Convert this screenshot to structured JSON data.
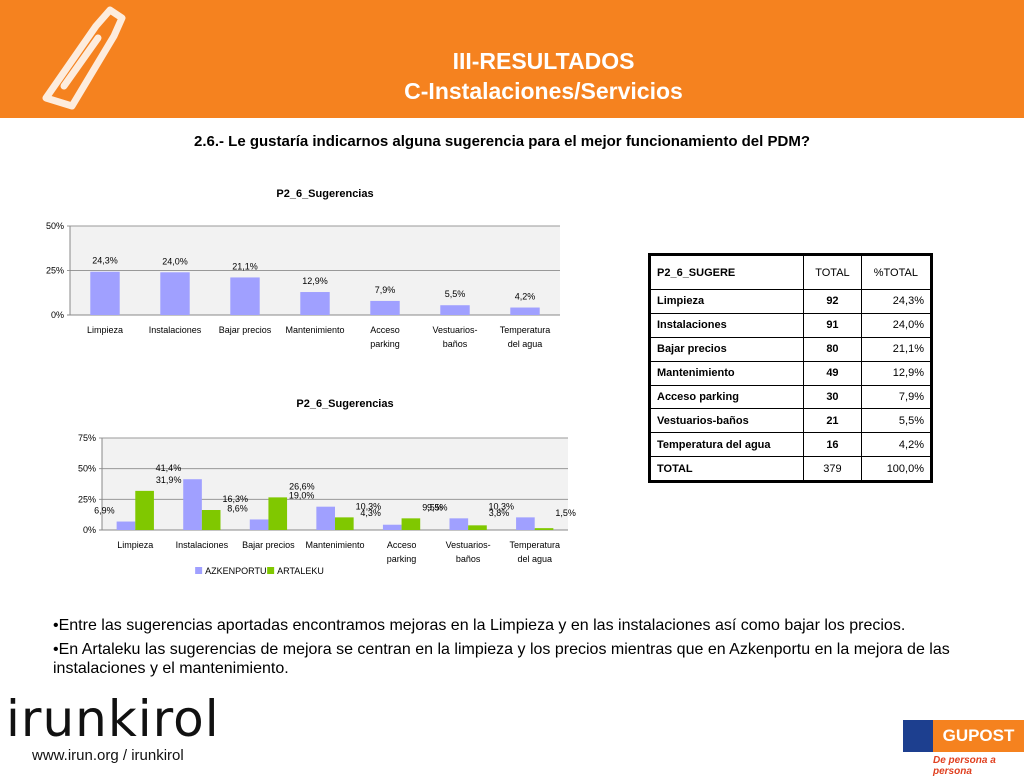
{
  "header": {
    "title_line1": "III-RESULTADOS",
    "title_line2": "C-Instalaciones/Servicios"
  },
  "question": "2.6.- Le gustaría indicarnos alguna sugerencia para el mejor funcionamiento del PDM?",
  "chart_data": [
    {
      "type": "bar",
      "title": "P2_6_Sugerencias",
      "categories": [
        [
          "Limpieza"
        ],
        [
          "Instalaciones"
        ],
        [
          "Bajar precios"
        ],
        [
          "Mantenimiento"
        ],
        [
          "Acceso",
          "parking"
        ],
        [
          "Vestuarios-",
          "baños"
        ],
        [
          "Temperatura",
          "del agua"
        ]
      ],
      "values": [
        24.3,
        24.0,
        21.1,
        12.9,
        7.9,
        5.5,
        4.2
      ],
      "labels": [
        "24,3%",
        "24,0%",
        "21,1%",
        "12,9%",
        "7,9%",
        "5,5%",
        "4,2%"
      ],
      "ylim": [
        0,
        50
      ],
      "yticks": [
        "0%",
        "25%",
        "50%"
      ],
      "colors": [
        "#a0a0ff"
      ]
    },
    {
      "type": "bar",
      "title": "P2_6_Sugerencias",
      "categories": [
        [
          "Limpieza"
        ],
        [
          "Instalaciones"
        ],
        [
          "Bajar precios"
        ],
        [
          "Mantenimiento"
        ],
        [
          "Acceso",
          "parking"
        ],
        [
          "Vestuarios-",
          "baños"
        ],
        [
          "Temperatura",
          "del agua"
        ]
      ],
      "series": [
        {
          "name": "AZKENPORTU",
          "values": [
            6.9,
            41.4,
            8.6,
            19.0,
            4.3,
            9.5,
            10.3
          ],
          "labels": [
            "6,9%",
            "41,4%",
            "8,6%",
            "19,0%",
            "4,3%",
            "9,5%",
            "10,3%"
          ],
          "color": "#a0a0ff"
        },
        {
          "name": "ARTALEKU",
          "values": [
            31.9,
            16.3,
            26.6,
            10.3,
            9.5,
            3.8,
            1.5
          ],
          "labels": [
            "31,9%",
            "16,3%",
            "26,6%",
            "10,3%",
            "9,5%",
            "3,8%",
            "1,5%"
          ],
          "color": "#80c800"
        }
      ],
      "ylim": [
        0,
        75
      ],
      "yticks": [
        "0%",
        "25%",
        "50%",
        "75%"
      ],
      "legend": "bottom"
    }
  ],
  "table": {
    "headers": [
      "P2_6_SUGERE",
      "TOTAL",
      "%TOTAL"
    ],
    "rows": [
      [
        "Limpieza",
        "92",
        "24,3%"
      ],
      [
        "Instalaciones",
        "91",
        "24,0%"
      ],
      [
        "Bajar precios",
        "80",
        "21,1%"
      ],
      [
        "Mantenimiento",
        "49",
        "12,9%"
      ],
      [
        "Acceso parking",
        "30",
        "7,9%"
      ],
      [
        "Vestuarios-baños",
        "21",
        "5,5%"
      ],
      [
        "Temperatura del agua",
        "16",
        "4,2%"
      ]
    ],
    "total": [
      "TOTAL",
      "379",
      "100,0%"
    ]
  },
  "bullets": [
    "•Entre las sugerencias aportadas encontramos mejoras en la Limpieza y en las instalaciones así como bajar los precios.",
    "•En Artaleku las sugerencias de mejora se centran en la limpieza y los precios mientras que en Azkenportu en la mejora de las instalaciones y el mantenimiento."
  ],
  "footer": {
    "logo_text": "irunkirol",
    "website": "www.irun.org / irunkirol",
    "partner_logo": "GUPOST",
    "partner_tagline": "De persona a persona"
  },
  "colors": {
    "header_orange": "#f5821f",
    "series1": "#a0a0ff",
    "series2": "#80c800"
  }
}
